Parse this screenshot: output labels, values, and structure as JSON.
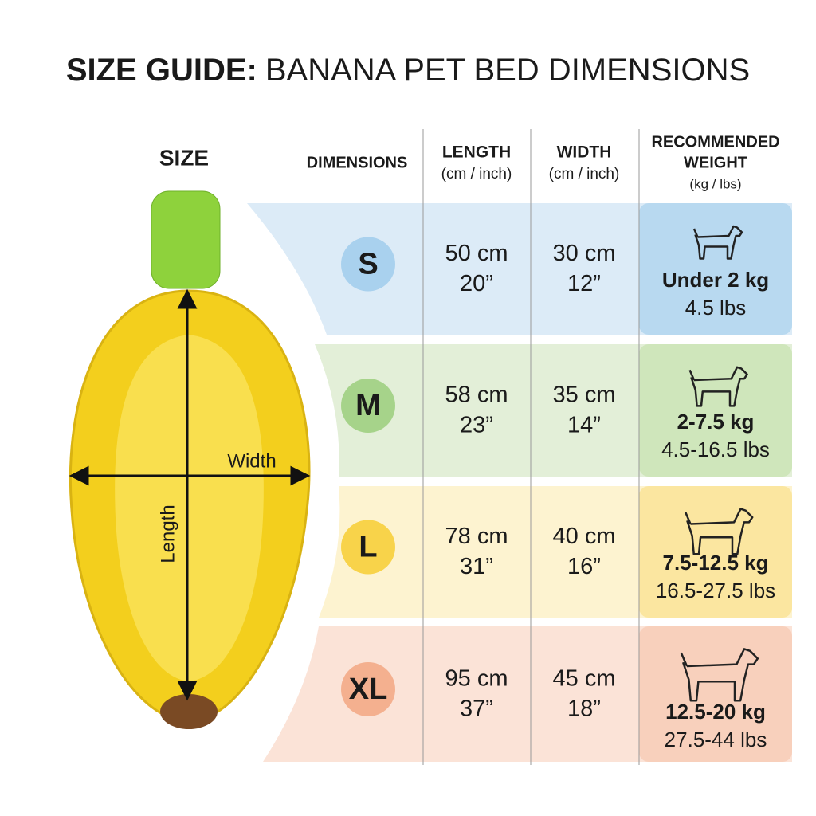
{
  "header": {
    "title_bold": "SIZE GUIDE:",
    "title_rest": "BANANA PET BED DIMENSIONS"
  },
  "table": {
    "headers": {
      "size": "SIZE",
      "dimensions": "DIMENSIONS",
      "length": [
        "LENGTH",
        "(cm / inch)"
      ],
      "width": [
        "WIDTH",
        "(cm / inch)"
      ],
      "weight": [
        "RECOMMENDED",
        "WEIGHT",
        "(kg / lbs)"
      ]
    },
    "rows": [
      {
        "size": "S",
        "length": [
          "50 cm",
          "20”"
        ],
        "width": [
          "30 cm",
          "12”"
        ],
        "weight": [
          "Under 2 kg",
          "4.5 lbs"
        ]
      },
      {
        "size": "M",
        "length": [
          "58 cm",
          "23”"
        ],
        "width": [
          "35 cm",
          "14”"
        ],
        "weight": [
          "2-7.5 kg",
          "4.5-16.5 lbs"
        ]
      },
      {
        "size": "L",
        "length": [
          "78 cm",
          "31”"
        ],
        "width": [
          "40 cm",
          "16”"
        ],
        "weight": [
          "7.5-12.5 kg",
          "16.5-27.5 lbs"
        ]
      },
      {
        "size": "XL",
        "length": [
          "95 cm",
          "37”"
        ],
        "width": [
          "45 cm",
          "18”"
        ],
        "weight": [
          "12.5-20 kg",
          "27.5-44 lbs"
        ]
      }
    ]
  },
  "image": {
    "width_label": "Width",
    "length_label": "Length"
  }
}
